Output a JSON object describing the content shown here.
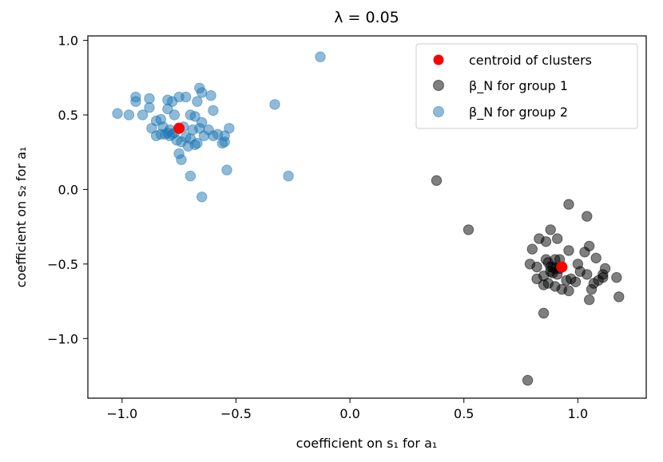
{
  "chart_data": {
    "type": "scatter",
    "title": "λ = 0.05",
    "xlabel": "coefficient on s₁ for a₁",
    "ylabel": "coefficient on s₂ for a₁",
    "xlim": [
      -1.15,
      1.3
    ],
    "ylim": [
      -1.4,
      1.03
    ],
    "x_ticks": [
      -1.0,
      -0.5,
      0.0,
      0.5,
      1.0
    ],
    "x_tick_labels": [
      "−1.0",
      "−0.5",
      "0.0",
      "0.5",
      "1.0"
    ],
    "y_ticks": [
      1.0,
      0.5,
      0.0,
      -0.5,
      -1.0
    ],
    "y_tick_labels": [
      "1.0",
      "0.5",
      "0.0",
      "−0.5",
      "−1.0"
    ],
    "grid": false,
    "legend_position": "top-right",
    "colors": {
      "group1": "#000000",
      "group2": "#1f77b4",
      "centroid": "#ff0000"
    },
    "series": [
      {
        "name": "β_N for group 1",
        "legend_label": "β_N for group 1",
        "color": "#000000",
        "alpha": 0.5,
        "points": [
          [
            0.38,
            0.06
          ],
          [
            0.52,
            -0.27
          ],
          [
            0.96,
            -0.1
          ],
          [
            1.04,
            -0.18
          ],
          [
            0.88,
            -0.27
          ],
          [
            0.83,
            -0.33
          ],
          [
            0.86,
            -0.35
          ],
          [
            0.91,
            -0.33
          ],
          [
            1.05,
            -0.38
          ],
          [
            0.96,
            -0.41
          ],
          [
            1.03,
            -0.42
          ],
          [
            0.8,
            -0.4
          ],
          [
            0.79,
            -0.5
          ],
          [
            0.82,
            -0.52
          ],
          [
            0.87,
            -0.49
          ],
          [
            0.9,
            -0.47
          ],
          [
            0.92,
            -0.47
          ],
          [
            1.08,
            -0.46
          ],
          [
            1.12,
            -0.53
          ],
          [
            1.11,
            -0.57
          ],
          [
            1.17,
            -0.59
          ],
          [
            0.85,
            -0.58
          ],
          [
            0.88,
            -0.55
          ],
          [
            0.89,
            -0.56
          ],
          [
            0.91,
            -0.57
          ],
          [
            0.95,
            -0.61
          ],
          [
            0.97,
            -0.6
          ],
          [
            0.99,
            -0.62
          ],
          [
            1.01,
            -0.55
          ],
          [
            1.04,
            -0.57
          ],
          [
            0.85,
            -0.64
          ],
          [
            0.87,
            -0.63
          ],
          [
            0.9,
            -0.65
          ],
          [
            0.93,
            -0.67
          ],
          [
            0.96,
            -0.68
          ],
          [
            1.07,
            -0.63
          ],
          [
            1.09,
            -0.61
          ],
          [
            1.11,
            -0.59
          ],
          [
            1.05,
            -0.74
          ],
          [
            1.18,
            -0.72
          ],
          [
            0.85,
            -0.83
          ],
          [
            0.78,
            -1.28
          ],
          [
            0.89,
            -0.52
          ],
          [
            0.9,
            -0.53
          ],
          [
            0.88,
            -0.52
          ],
          [
            0.92,
            -0.53
          ],
          [
            0.86,
            -0.47
          ],
          [
            1.0,
            -0.5
          ],
          [
            1.06,
            -0.67
          ],
          [
            0.82,
            -0.6
          ]
        ]
      },
      {
        "name": "β_N for group 2",
        "legend_label": "β_N for group 2",
        "color": "#1f77b4",
        "alpha": 0.5,
        "points": [
          [
            -0.13,
            0.89
          ],
          [
            -0.33,
            0.57
          ],
          [
            -0.27,
            0.09
          ],
          [
            -0.54,
            0.13
          ],
          [
            -0.65,
            -0.05
          ],
          [
            -0.66,
            0.68
          ],
          [
            -0.65,
            0.65
          ],
          [
            -0.67,
            0.59
          ],
          [
            -0.61,
            0.63
          ],
          [
            -0.72,
            0.62
          ],
          [
            -0.75,
            0.62
          ],
          [
            -0.78,
            0.59
          ],
          [
            -0.8,
            0.6
          ],
          [
            -0.8,
            0.54
          ],
          [
            -0.94,
            0.62
          ],
          [
            -0.94,
            0.59
          ],
          [
            -0.88,
            0.61
          ],
          [
            -0.88,
            0.55
          ],
          [
            -1.02,
            0.51
          ],
          [
            -0.97,
            0.5
          ],
          [
            -0.91,
            0.5
          ],
          [
            -0.85,
            0.46
          ],
          [
            -0.83,
            0.47
          ],
          [
            -0.77,
            0.5
          ],
          [
            -0.7,
            0.5
          ],
          [
            -0.68,
            0.49
          ],
          [
            -0.65,
            0.45
          ],
          [
            -0.6,
            0.53
          ],
          [
            -0.87,
            0.41
          ],
          [
            -0.82,
            0.42
          ],
          [
            -0.79,
            0.4
          ],
          [
            -0.77,
            0.38
          ],
          [
            -0.73,
            0.42
          ],
          [
            -0.69,
            0.4
          ],
          [
            -0.66,
            0.41
          ],
          [
            -0.62,
            0.4
          ],
          [
            -0.58,
            0.37
          ],
          [
            -0.55,
            0.36
          ],
          [
            -0.53,
            0.41
          ],
          [
            -0.85,
            0.36
          ],
          [
            -0.83,
            0.37
          ],
          [
            -0.81,
            0.37
          ],
          [
            -0.79,
            0.36
          ],
          [
            -0.76,
            0.33
          ],
          [
            -0.74,
            0.32
          ],
          [
            -0.72,
            0.35
          ],
          [
            -0.7,
            0.34
          ],
          [
            -0.68,
            0.3
          ],
          [
            -0.67,
            0.31
          ],
          [
            -0.55,
            0.32
          ],
          [
            -0.56,
            0.31
          ],
          [
            -0.75,
            0.24
          ],
          [
            -0.74,
            0.2
          ],
          [
            -0.7,
            0.09
          ],
          [
            -0.71,
            0.29
          ],
          [
            -0.6,
            0.36
          ],
          [
            -0.64,
            0.36
          ],
          [
            -0.78,
            0.37
          ],
          [
            -0.8,
            0.38
          ]
        ]
      },
      {
        "name": "centroid of clusters",
        "legend_label": "centroid of clusters",
        "color": "#ff0000",
        "alpha": 1.0,
        "points": [
          [
            -0.75,
            0.41
          ],
          [
            0.93,
            -0.52
          ]
        ]
      }
    ]
  }
}
